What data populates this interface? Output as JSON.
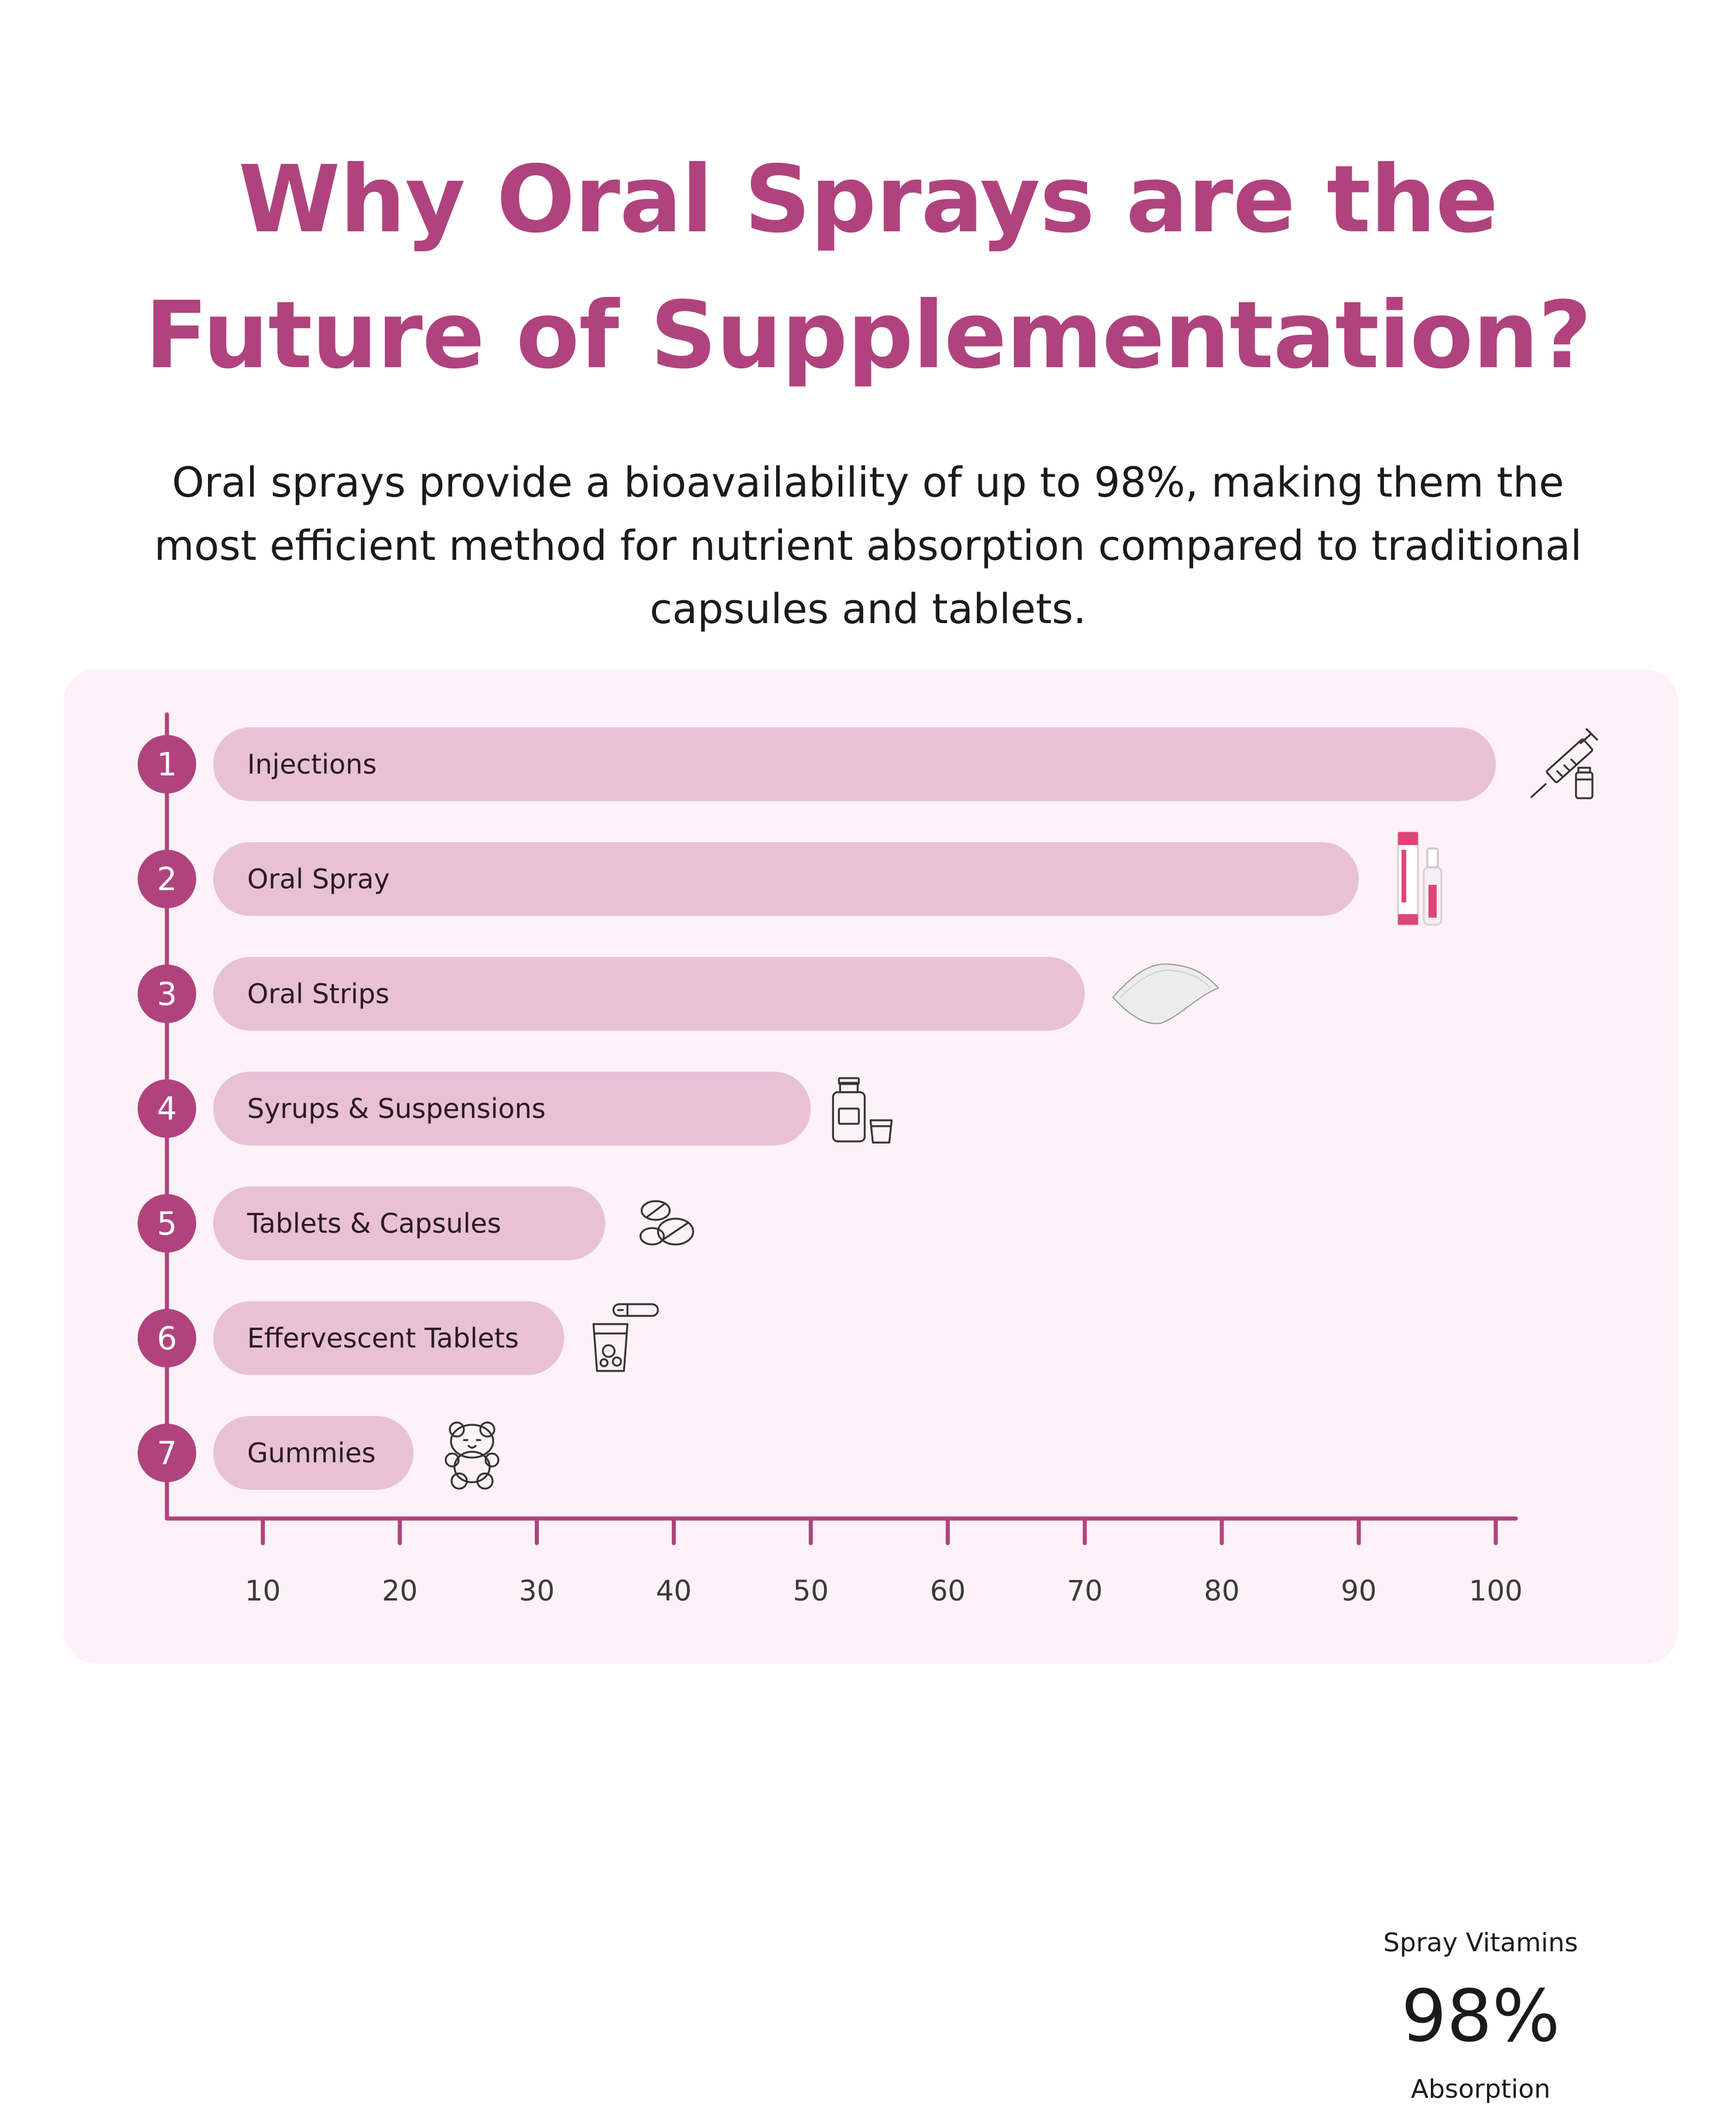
{
  "header": {
    "title_line1": "Why Oral Sprays are the",
    "title_line2": "Future of Supplementation?",
    "subtitle_line1": "Oral sprays provide a bioavailability of up to 98%, making them the",
    "subtitle_line2": "most efficient method for nutrient absorption compared to traditional",
    "subtitle_line3": "capsules and tablets."
  },
  "colors": {
    "accent": "#b0437d",
    "bar": "#e8c1d7",
    "panel": "#fcf2f7"
  },
  "chart_data": {
    "type": "bar",
    "orientation": "horizontal",
    "categories": [
      "Injections",
      "Oral Spray",
      "Oral Strips",
      "Syrups & Suspensions",
      "Tablets & Capsules",
      "Effervescent Tablets",
      "Gummies"
    ],
    "ranks": [
      "1",
      "2",
      "3",
      "4",
      "5",
      "6",
      "7"
    ],
    "values": [
      100,
      90,
      70,
      50,
      35,
      32,
      21
    ],
    "icons": [
      "syringe-icon",
      "spray-bottle-icon",
      "oral-strip-icon",
      "syrup-bottle-icon",
      "tablets-icon",
      "effervescent-glass-icon",
      "gummy-bear-icon"
    ],
    "xticks": [
      10,
      20,
      30,
      40,
      50,
      60,
      70,
      80,
      90,
      100
    ],
    "xlim": [
      3,
      102
    ],
    "title": "",
    "xlabel": "",
    "ylabel": "",
    "grid": false,
    "legend": "none"
  },
  "callout": {
    "label": "Spray Vitamins",
    "value": "98%",
    "sublabel": "Absorption"
  }
}
